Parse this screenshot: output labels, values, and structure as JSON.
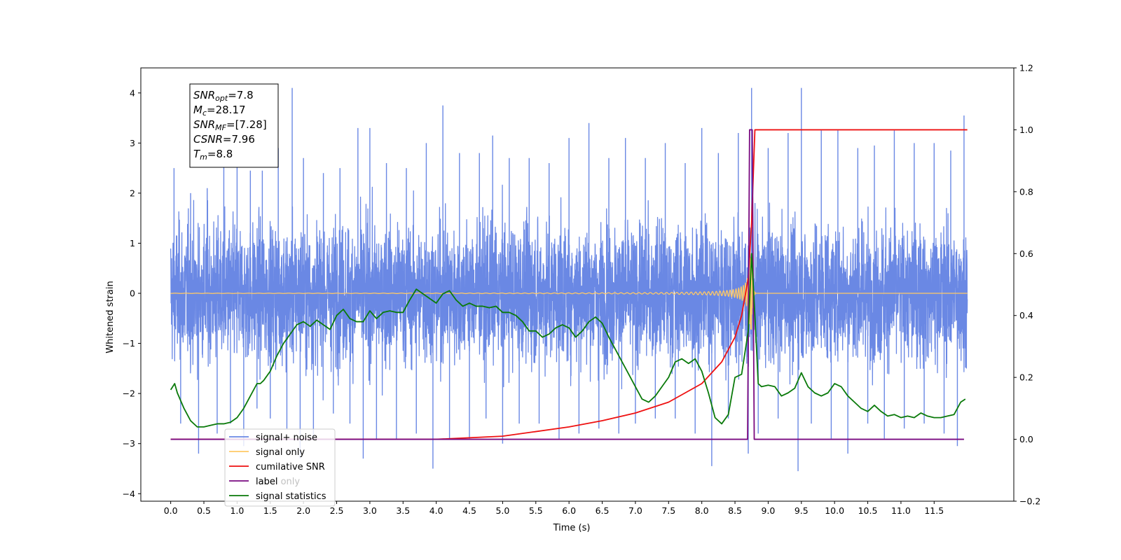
{
  "chart_data": {
    "type": "line",
    "xlabel": "Time (s)",
    "ylabel": "Whitened strain",
    "xlim": [
      -0.45,
      12.7
    ],
    "ylim": [
      -4.15,
      4.5
    ],
    "y2lim": [
      -0.2,
      1.2
    ],
    "x_ticks": [
      "0.0",
      "0.5",
      "1.0",
      "1.5",
      "2.0",
      "2.5",
      "3.0",
      "3.5",
      "4.0",
      "4.5",
      "5.0",
      "5.5",
      "6.0",
      "6.5",
      "7.0",
      "7.5",
      "8.0",
      "8.5",
      "9.0",
      "9.5",
      "10.0",
      "10.5",
      "11.0",
      "11.5"
    ],
    "y_ticks": [
      "4",
      "3",
      "2",
      "1",
      "0",
      "−1",
      "−2",
      "−3",
      "−4"
    ],
    "y2_ticks": [
      "1.2",
      "1.0",
      "0.8",
      "0.6",
      "0.4",
      "0.2",
      "0.0",
      "−0.2"
    ],
    "annotation": {
      "lines": [
        {
          "name": "SNR",
          "sub": "opt",
          "value": "=7.8"
        },
        {
          "name": "M",
          "sub": "c",
          "value": "=28.17"
        },
        {
          "name": "SNR",
          "sub": "MF",
          "value": "=[7.28]"
        },
        {
          "name": "CSNR",
          "sub": "",
          "value": "=7.96"
        },
        {
          "name": "T",
          "sub": "m",
          "value": "=8.8"
        }
      ]
    },
    "legend_position": "lower-left",
    "series": [
      {
        "name": "signal+ noise",
        "axis": "left",
        "color": "#6a88e4",
        "x_range": [
          0,
          12
        ],
        "envelope_peaks": [
          [
            0.05,
            2.5
          ],
          [
            0.15,
            -2.6
          ],
          [
            0.3,
            2.0
          ],
          [
            0.42,
            -3.2
          ],
          [
            0.55,
            2.1
          ],
          [
            0.7,
            -2.8
          ],
          [
            0.8,
            3.25
          ],
          [
            0.9,
            -2.6
          ],
          [
            1.0,
            3.05
          ],
          [
            1.1,
            -3.05
          ],
          [
            1.2,
            2.45
          ],
          [
            1.3,
            -2.3
          ],
          [
            1.38,
            2.45
          ],
          [
            1.5,
            -2.5
          ],
          [
            1.62,
            2.9
          ],
          [
            1.75,
            -2.7
          ],
          [
            1.83,
            4.1
          ],
          [
            1.95,
            -3.3
          ],
          [
            2.0,
            2.7
          ],
          [
            2.15,
            -2.9
          ],
          [
            2.3,
            2.4
          ],
          [
            2.45,
            -2.4
          ],
          [
            2.55,
            2.5
          ],
          [
            2.7,
            -2.6
          ],
          [
            2.82,
            3.3
          ],
          [
            2.9,
            -3.3
          ],
          [
            3.0,
            3.3
          ],
          [
            3.1,
            -2.9
          ],
          [
            3.25,
            2.6
          ],
          [
            3.4,
            -2.9
          ],
          [
            3.55,
            2.5
          ],
          [
            3.7,
            -2.8
          ],
          [
            3.85,
            3.0
          ],
          [
            3.95,
            -3.5
          ],
          [
            4.1,
            3.75
          ],
          [
            4.2,
            -2.9
          ],
          [
            4.35,
            2.8
          ],
          [
            4.5,
            -2.9
          ],
          [
            4.65,
            2.8
          ],
          [
            4.75,
            -2.5
          ],
          [
            4.85,
            3.15
          ],
          [
            5.0,
            -3.0
          ],
          [
            5.1,
            2.7
          ],
          [
            5.25,
            -2.6
          ],
          [
            5.4,
            2.7
          ],
          [
            5.55,
            -2.6
          ],
          [
            5.7,
            2.6
          ],
          [
            5.85,
            -2.9
          ],
          [
            6.0,
            3.1
          ],
          [
            6.15,
            -2.8
          ],
          [
            6.3,
            3.4
          ],
          [
            6.45,
            -2.7
          ],
          [
            6.6,
            2.7
          ],
          [
            6.75,
            -2.8
          ],
          [
            6.85,
            3.1
          ],
          [
            7.0,
            -2.6
          ],
          [
            7.15,
            2.7
          ],
          [
            7.3,
            -2.5
          ],
          [
            7.45,
            3.0
          ],
          [
            7.6,
            -2.5
          ],
          [
            7.75,
            2.6
          ],
          [
            7.9,
            -2.8
          ],
          [
            8.0,
            3.3
          ],
          [
            8.15,
            -3.45
          ],
          [
            8.25,
            2.8
          ],
          [
            8.4,
            -2.5
          ],
          [
            8.55,
            3.2
          ],
          [
            8.7,
            -3.2
          ],
          [
            8.75,
            4.1
          ],
          [
            8.85,
            -2.8
          ],
          [
            9.0,
            2.9
          ],
          [
            9.15,
            -2.5
          ],
          [
            9.3,
            3.2
          ],
          [
            9.45,
            -3.55
          ],
          [
            9.5,
            4.1
          ],
          [
            9.65,
            -2.6
          ],
          [
            9.8,
            3.25
          ],
          [
            9.95,
            -2.9
          ],
          [
            10.05,
            3.25
          ],
          [
            10.2,
            -3.2
          ],
          [
            10.35,
            2.9
          ],
          [
            10.5,
            -2.6
          ],
          [
            10.6,
            2.95
          ],
          [
            10.75,
            -2.9
          ],
          [
            10.9,
            3.25
          ],
          [
            11.05,
            -2.7
          ],
          [
            11.2,
            3.0
          ],
          [
            11.35,
            -2.6
          ],
          [
            11.5,
            3.0
          ],
          [
            11.65,
            -2.8
          ],
          [
            11.75,
            2.85
          ],
          [
            11.85,
            -3.05
          ],
          [
            11.95,
            3.55
          ]
        ]
      },
      {
        "name": "signal only",
        "axis": "left",
        "color": "#ffc966",
        "x_range": [
          0,
          12
        ],
        "merger_time": 8.75
      },
      {
        "name": "cumilative SNR",
        "axis": "right",
        "color": "#ee1111",
        "points": [
          [
            0.0,
            0.0
          ],
          [
            4.0,
            0.0
          ],
          [
            5.0,
            0.01
          ],
          [
            6.0,
            0.04
          ],
          [
            6.5,
            0.06
          ],
          [
            7.0,
            0.085
          ],
          [
            7.5,
            0.12
          ],
          [
            8.0,
            0.18
          ],
          [
            8.3,
            0.25
          ],
          [
            8.5,
            0.33
          ],
          [
            8.6,
            0.4
          ],
          [
            8.7,
            0.52
          ],
          [
            8.75,
            0.7
          ],
          [
            8.8,
            1.0
          ],
          [
            12.0,
            1.0
          ]
        ]
      },
      {
        "name": "label",
        "axis": "right",
        "color": "#7a0a80",
        "points": [
          [
            0.0,
            0.0
          ],
          [
            8.69,
            0.0
          ],
          [
            8.72,
            1.0
          ],
          [
            8.76,
            1.0
          ],
          [
            8.79,
            0.0
          ],
          [
            11.95,
            0.0
          ]
        ]
      },
      {
        "name": "label only",
        "axis": "right",
        "color": "#7a0a80"
      },
      {
        "name": "signal statistics",
        "axis": "right",
        "color": "#0a7a0a",
        "points": [
          [
            0.0,
            0.16
          ],
          [
            0.06,
            0.18
          ],
          [
            0.1,
            0.15
          ],
          [
            0.2,
            0.1
          ],
          [
            0.3,
            0.06
          ],
          [
            0.4,
            0.04
          ],
          [
            0.5,
            0.04
          ],
          [
            0.6,
            0.045
          ],
          [
            0.7,
            0.05
          ],
          [
            0.8,
            0.05
          ],
          [
            0.9,
            0.055
          ],
          [
            1.0,
            0.07
          ],
          [
            1.1,
            0.1
          ],
          [
            1.2,
            0.14
          ],
          [
            1.3,
            0.18
          ],
          [
            1.35,
            0.18
          ],
          [
            1.4,
            0.19
          ],
          [
            1.5,
            0.22
          ],
          [
            1.6,
            0.27
          ],
          [
            1.7,
            0.31
          ],
          [
            1.8,
            0.34
          ],
          [
            1.9,
            0.37
          ],
          [
            2.0,
            0.38
          ],
          [
            2.1,
            0.365
          ],
          [
            2.2,
            0.385
          ],
          [
            2.3,
            0.37
          ],
          [
            2.4,
            0.355
          ],
          [
            2.5,
            0.4
          ],
          [
            2.6,
            0.42
          ],
          [
            2.7,
            0.39
          ],
          [
            2.8,
            0.38
          ],
          [
            2.9,
            0.38
          ],
          [
            3.0,
            0.415
          ],
          [
            3.1,
            0.39
          ],
          [
            3.2,
            0.41
          ],
          [
            3.3,
            0.415
          ],
          [
            3.4,
            0.41
          ],
          [
            3.5,
            0.41
          ],
          [
            3.6,
            0.45
          ],
          [
            3.7,
            0.485
          ],
          [
            3.8,
            0.47
          ],
          [
            3.9,
            0.455
          ],
          [
            4.0,
            0.44
          ],
          [
            4.1,
            0.47
          ],
          [
            4.2,
            0.48
          ],
          [
            4.3,
            0.45
          ],
          [
            4.4,
            0.43
          ],
          [
            4.5,
            0.44
          ],
          [
            4.6,
            0.43
          ],
          [
            4.7,
            0.43
          ],
          [
            4.8,
            0.425
          ],
          [
            4.9,
            0.43
          ],
          [
            5.0,
            0.41
          ],
          [
            5.1,
            0.41
          ],
          [
            5.2,
            0.4
          ],
          [
            5.3,
            0.38
          ],
          [
            5.4,
            0.35
          ],
          [
            5.5,
            0.35
          ],
          [
            5.6,
            0.33
          ],
          [
            5.7,
            0.34
          ],
          [
            5.8,
            0.36
          ],
          [
            5.9,
            0.37
          ],
          [
            6.0,
            0.36
          ],
          [
            6.1,
            0.33
          ],
          [
            6.2,
            0.35
          ],
          [
            6.3,
            0.38
          ],
          [
            6.4,
            0.395
          ],
          [
            6.5,
            0.375
          ],
          [
            6.6,
            0.33
          ],
          [
            6.7,
            0.29
          ],
          [
            6.8,
            0.25
          ],
          [
            6.9,
            0.21
          ],
          [
            7.0,
            0.17
          ],
          [
            7.1,
            0.13
          ],
          [
            7.2,
            0.12
          ],
          [
            7.3,
            0.14
          ],
          [
            7.4,
            0.17
          ],
          [
            7.5,
            0.2
          ],
          [
            7.6,
            0.25
          ],
          [
            7.7,
            0.26
          ],
          [
            7.8,
            0.245
          ],
          [
            7.9,
            0.26
          ],
          [
            8.0,
            0.22
          ],
          [
            8.1,
            0.15
          ],
          [
            8.2,
            0.07
          ],
          [
            8.3,
            0.05
          ],
          [
            8.4,
            0.08
          ],
          [
            8.5,
            0.2
          ],
          [
            8.6,
            0.21
          ],
          [
            8.7,
            0.35
          ],
          [
            8.75,
            0.6
          ],
          [
            8.8,
            0.4
          ],
          [
            8.85,
            0.18
          ],
          [
            8.9,
            0.17
          ],
          [
            9.0,
            0.175
          ],
          [
            9.1,
            0.17
          ],
          [
            9.2,
            0.14
          ],
          [
            9.3,
            0.15
          ],
          [
            9.4,
            0.165
          ],
          [
            9.5,
            0.215
          ],
          [
            9.6,
            0.17
          ],
          [
            9.7,
            0.15
          ],
          [
            9.8,
            0.14
          ],
          [
            9.9,
            0.15
          ],
          [
            10.0,
            0.18
          ],
          [
            10.1,
            0.17
          ],
          [
            10.2,
            0.14
          ],
          [
            10.3,
            0.12
          ],
          [
            10.4,
            0.1
          ],
          [
            10.5,
            0.09
          ],
          [
            10.6,
            0.11
          ],
          [
            10.7,
            0.09
          ],
          [
            10.8,
            0.075
          ],
          [
            10.9,
            0.08
          ],
          [
            11.0,
            0.07
          ],
          [
            11.1,
            0.075
          ],
          [
            11.2,
            0.07
          ],
          [
            11.3,
            0.085
          ],
          [
            11.4,
            0.075
          ],
          [
            11.5,
            0.07
          ],
          [
            11.6,
            0.07
          ],
          [
            11.7,
            0.075
          ],
          [
            11.8,
            0.08
          ],
          [
            11.9,
            0.12
          ],
          [
            11.97,
            0.13
          ]
        ]
      }
    ]
  }
}
